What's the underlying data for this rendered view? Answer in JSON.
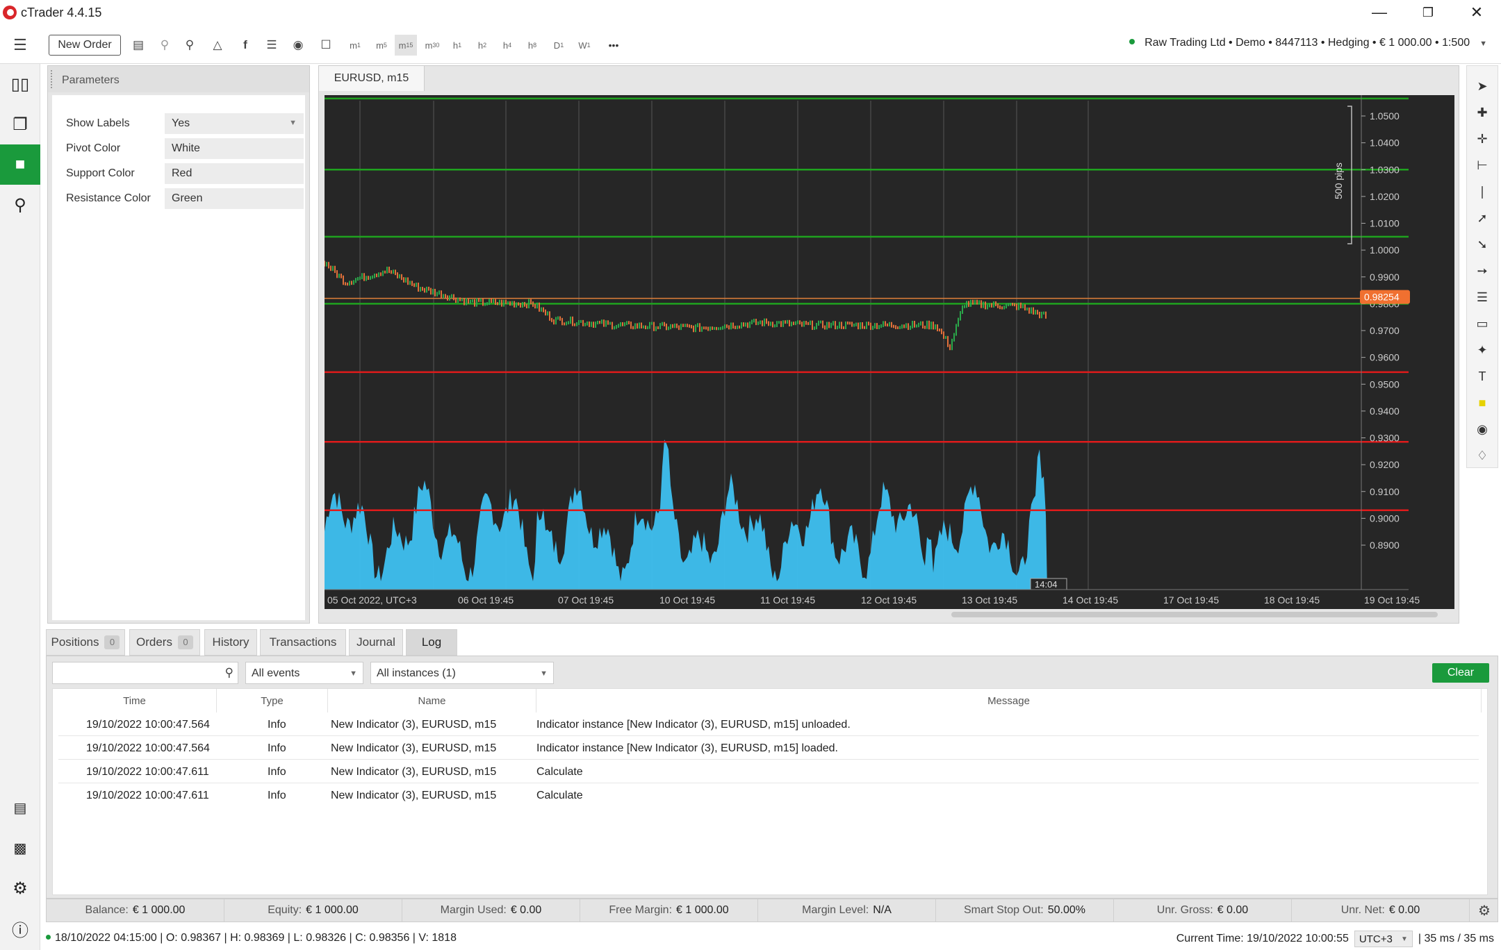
{
  "window": {
    "title": "cTrader 4.4.15"
  },
  "toolbar": {
    "new_order": "New Order",
    "timeframes": [
      {
        "b": "m",
        "s": "1"
      },
      {
        "b": "m",
        "s": "5"
      },
      {
        "b": "m",
        "s": "15"
      },
      {
        "b": "m",
        "s": "30"
      },
      {
        "b": "h",
        "s": "1"
      },
      {
        "b": "h",
        "s": "2"
      },
      {
        "b": "h",
        "s": "4"
      },
      {
        "b": "h",
        "s": "8"
      },
      {
        "b": "D",
        "s": "1"
      },
      {
        "b": "W",
        "s": "1"
      }
    ],
    "more": "•••",
    "account": "Raw Trading Ltd • Demo • 8447113 • Hedging • € 1 000.00 • 1:500"
  },
  "parameters": {
    "header": "Parameters",
    "rows": [
      {
        "label": "Show Labels",
        "value": "Yes",
        "dropdown": true
      },
      {
        "label": "Pivot Color",
        "value": "White"
      },
      {
        "label": "Support Color",
        "value": "Red"
      },
      {
        "label": "Resistance Color",
        "value": "Green"
      }
    ]
  },
  "chart": {
    "tab": "EURUSD, m15",
    "price_ticks": [
      "1.0500",
      "1.0400",
      "1.0300",
      "1.0200",
      "1.0100",
      "1.0000",
      "0.9900",
      "0.9800",
      "0.9700",
      "0.9600",
      "0.9500",
      "0.9400",
      "0.9300",
      "0.9200",
      "0.9100",
      "0.9000",
      "0.8900"
    ],
    "date_ticks": [
      "05 Oct 2022, UTC+3",
      "06 Oct 19:45",
      "07 Oct 19:45",
      "10 Oct 19:45",
      "11 Oct 19:45",
      "12 Oct 19:45",
      "13 Oct 19:45",
      "14 Oct 19:45",
      "17 Oct 19:45",
      "18 Oct 19:45",
      "19 Oct 19:45"
    ],
    "current_price": "0.98254",
    "range_label": "500 pips",
    "countdown": "14:04",
    "resistance_levels": [
      1.0565,
      1.03,
      1.005,
      0.98
    ],
    "support_levels": [
      0.9545,
      0.9285,
      0.903
    ],
    "pivot_level": 0.982,
    "colors": {
      "resistance": "#1fa31f",
      "support": "#e01b1b",
      "pivot": "#e0803a",
      "price_tag": "#f07030",
      "volume": "#3ec0f0",
      "bull": "#2aa84a",
      "bear": "#e0703a"
    }
  },
  "bottom_tabs": [
    {
      "label": "Positions",
      "count": "0"
    },
    {
      "label": "Orders",
      "count": "0"
    },
    {
      "label": "History"
    },
    {
      "label": "Transactions"
    },
    {
      "label": "Journal"
    },
    {
      "label": "Log",
      "active": true
    }
  ],
  "log": {
    "events_filter": "All events",
    "instances_filter": "All instances (1)",
    "clear": "Clear",
    "columns": [
      "Time",
      "Type",
      "Name",
      "Message"
    ],
    "rows": [
      {
        "time": "19/10/2022 10:00:47.564",
        "type": "Info",
        "name": "New Indicator (3), EURUSD, m15",
        "message": "Indicator instance [New Indicator (3), EURUSD, m15] unloaded."
      },
      {
        "time": "19/10/2022 10:00:47.564",
        "type": "Info",
        "name": "New Indicator (3), EURUSD, m15",
        "message": "Indicator instance [New Indicator (3), EURUSD, m15] loaded."
      },
      {
        "time": "19/10/2022 10:00:47.611",
        "type": "Info",
        "name": "New Indicator (3), EURUSD, m15",
        "message": "Calculate"
      },
      {
        "time": "19/10/2022 10:00:47.611",
        "type": "Info",
        "name": "New Indicator (3), EURUSD, m15",
        "message": "Calculate"
      }
    ]
  },
  "stats": [
    {
      "label": "Balance:",
      "value": "€ 1 000.00"
    },
    {
      "label": "Equity:",
      "value": "€ 1 000.00"
    },
    {
      "label": "Margin Used:",
      "value": "€ 0.00"
    },
    {
      "label": "Free Margin:",
      "value": "€ 1 000.00"
    },
    {
      "label": "Margin Level:",
      "value": "N/A"
    },
    {
      "label": "Smart Stop Out:",
      "value": "50.00%"
    },
    {
      "label": "Unr. Gross:",
      "value": "€ 0.00"
    },
    {
      "label": "Unr. Net:",
      "value": "€ 0.00"
    }
  ],
  "statusbar": {
    "ohlc": "18/10/2022 04:15:00 | O: 0.98367 | H: 0.98369 | L: 0.98326 | C: 0.98356 | V: 1818",
    "current_time": "Current Time: 19/10/2022 10:00:55",
    "timezone": "UTC+3",
    "latency": "| 35 ms / 35 ms"
  }
}
